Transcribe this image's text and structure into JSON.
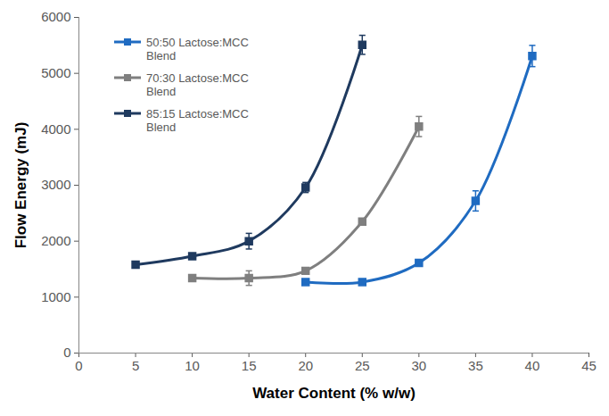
{
  "chart_data": {
    "type": "line",
    "x_label": "Water Content (% w/w)",
    "y_label": "Flow Energy (mJ)",
    "xlim": [
      0,
      45
    ],
    "xticks": [
      0,
      5,
      10,
      15,
      20,
      25,
      30,
      35,
      40,
      45
    ],
    "ylim": [
      0,
      6000
    ],
    "yticks": [
      0,
      1000,
      2000,
      3000,
      4000,
      5000,
      6000
    ],
    "grid": false,
    "legend": "upper left",
    "marker": "square",
    "line_style": "solid",
    "series": [
      {
        "name": "50:50 Lactose:MCC Blend",
        "color": "#1F6BC1",
        "x": [
          20,
          25,
          30,
          35,
          40
        ],
        "values": [
          1270,
          1270,
          1610,
          2720,
          5310
        ],
        "error": [
          30,
          30,
          40,
          180,
          190
        ]
      },
      {
        "name": "70:30 Lactose:MCC Blend",
        "color": "#7F7F7F",
        "x": [
          10,
          15,
          20,
          25,
          30
        ],
        "values": [
          1340,
          1340,
          1470,
          2350,
          4050
        ],
        "error": [
          30,
          130,
          40,
          40,
          180
        ]
      },
      {
        "name": "85:15 Lactose:MCC Blend",
        "color": "#1F3A5F",
        "x": [
          5,
          10,
          15,
          20,
          25
        ],
        "values": [
          1580,
          1730,
          2000,
          2960,
          5510
        ],
        "error": [
          20,
          50,
          140,
          90,
          170
        ]
      }
    ]
  }
}
